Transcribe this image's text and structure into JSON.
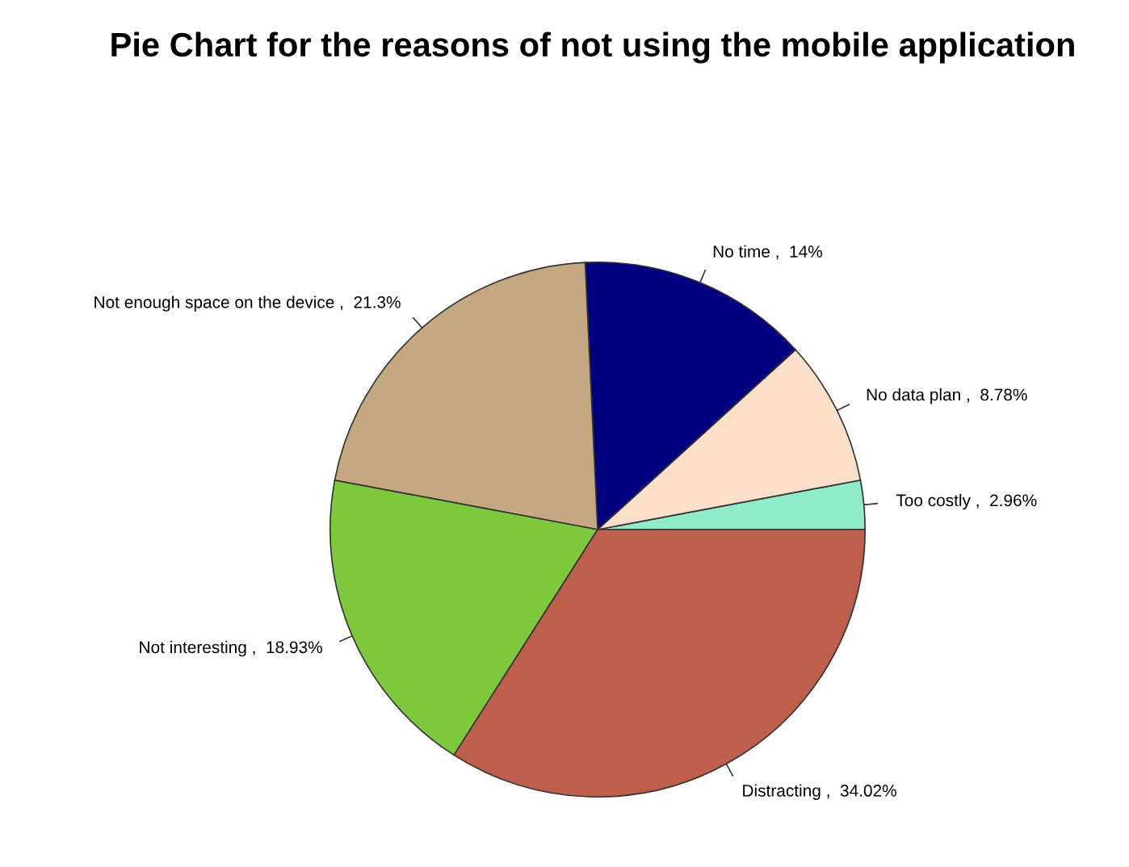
{
  "chart_data": {
    "type": "pie",
    "title": "Pie Chart for the reasons of not using the mobile application",
    "categories": [
      "Too costly ,  2.96%",
      "No data plan ,  8.78%",
      "No time ,  14%",
      "Not enough space on the device ,  21.3%",
      "Not interesting ,  18.93%",
      "Distracting ,  34.02%"
    ],
    "values": [
      2.96,
      8.78,
      14,
      21.3,
      18.93,
      34.02
    ],
    "colors": [
      "#90ebc8",
      "#fae0c8",
      "#000080",
      "#c4a880",
      "#7dc83c",
      "#be5f4b"
    ]
  }
}
